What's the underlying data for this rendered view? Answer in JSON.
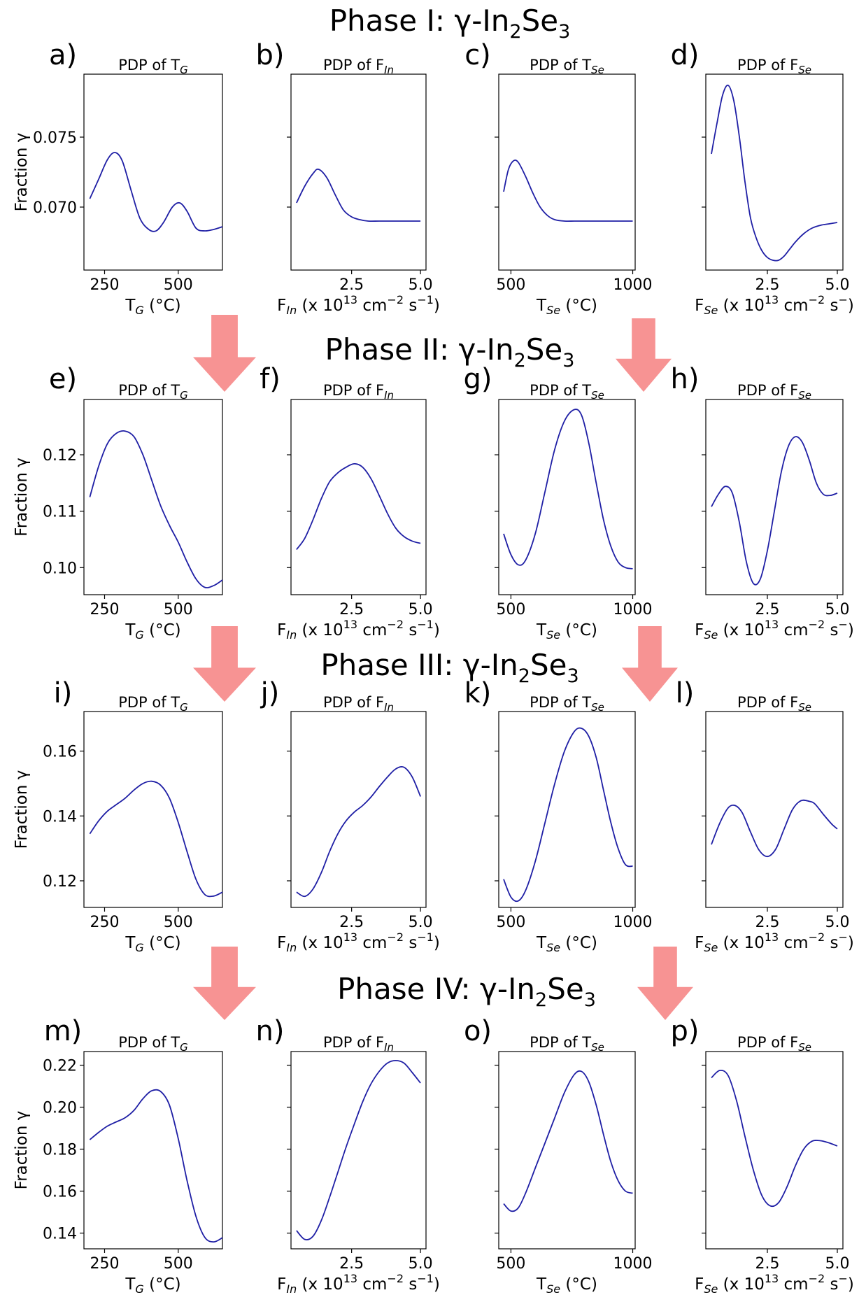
{
  "figure": {
    "phase_titles": [
      {
        "prefix": "Phase I: γ-In",
        "sub1": "2",
        "mid": "Se",
        "sub2": "3"
      },
      {
        "prefix": "Phase II: γ-In",
        "sub1": "2",
        "mid": "Se",
        "sub2": "3"
      },
      {
        "prefix": "Phase III: γ-In",
        "sub1": "2",
        "mid": "Se",
        "sub2": "3"
      },
      {
        "prefix": "Phase IV: γ-In",
        "sub1": "2",
        "mid": "Se",
        "sub2": "3"
      }
    ],
    "arrow_color": "#f79393",
    "line_color": "#1f1fa5",
    "x_labels": [
      {
        "main": "T",
        "sub": "G",
        "unit": " (°C)"
      },
      {
        "main": "F",
        "sub": "In",
        "unit": " (x 10",
        "sup": "13",
        "unit2": " cm",
        "sup2": "−2",
        "unit3": " s",
        "sup3": "−1",
        "unit4": ")"
      },
      {
        "main": "T",
        "sub": "Se",
        "unit": " (°C)"
      },
      {
        "main": "F",
        "sub": "Se",
        "unit": " (x 10",
        "sup": "13",
        "unit2": " cm",
        "sup2": "−2",
        "unit3": " s",
        "sup3": "−",
        "unit4": ")"
      }
    ],
    "panel_titles": [
      {
        "main": "PDP of T",
        "sub": "G"
      },
      {
        "main": "PDP of F",
        "sub": "In"
      },
      {
        "main": "PDP of T",
        "sub": "Se"
      },
      {
        "main": "PDP of F",
        "sub": "Se"
      }
    ],
    "y_label_main": "Fraction γ"
  },
  "chart_data": [
    {
      "type": "line",
      "letter": "a)",
      "xlim": [
        180,
        650
      ],
      "ylim": [
        0.0655,
        0.0795
      ],
      "xticks": [
        250,
        500
      ],
      "xtick_labels": [
        "250",
        "500"
      ],
      "yticks": [
        0.07,
        0.075
      ],
      "ytick_labels": [
        "0.070",
        "0.075"
      ],
      "x": [
        200,
        230,
        260,
        285,
        310,
        340,
        370,
        400,
        425,
        450,
        480,
        505,
        530,
        560,
        590,
        620,
        650
      ],
      "y": [
        0.0706,
        0.072,
        0.0734,
        0.0739,
        0.0733,
        0.0712,
        0.0692,
        0.0684,
        0.0683,
        0.0689,
        0.07,
        0.0703,
        0.0697,
        0.0685,
        0.0683,
        0.0684,
        0.0686
      ]
    },
    {
      "type": "line",
      "letter": "b)",
      "xlim": [
        0.3,
        5.2
      ],
      "ylim": [
        0.0655,
        0.0795
      ],
      "xticks": [
        2.5,
        5.0
      ],
      "xtick_labels": [
        "2.5",
        "5.0"
      ],
      "yticks": [
        0.07,
        0.075
      ],
      "ytick_labels": [
        "",
        ""
      ],
      "x": [
        0.5,
        0.8,
        1.1,
        1.3,
        1.6,
        1.9,
        2.2,
        2.5,
        2.8,
        3.1,
        3.5,
        4.0,
        4.5,
        5.0
      ],
      "y": [
        0.0703,
        0.0715,
        0.0724,
        0.0727,
        0.0721,
        0.0709,
        0.0698,
        0.0693,
        0.0691,
        0.069,
        0.069,
        0.069,
        0.069,
        0.069
      ]
    },
    {
      "type": "line",
      "letter": "c)",
      "xlim": [
        450,
        1010
      ],
      "ylim": [
        0.0655,
        0.0795
      ],
      "xticks": [
        500,
        1000
      ],
      "xtick_labels": [
        "500",
        "1000"
      ],
      "yticks": [
        0.07,
        0.075
      ],
      "ytick_labels": [
        "",
        ""
      ],
      "x": [
        470,
        490,
        510,
        530,
        560,
        590,
        620,
        650,
        680,
        720,
        760,
        800,
        850,
        900,
        950,
        1000
      ],
      "y": [
        0.0711,
        0.0727,
        0.0733,
        0.0732,
        0.0722,
        0.071,
        0.07,
        0.0694,
        0.0691,
        0.069,
        0.069,
        0.069,
        0.069,
        0.069,
        0.069,
        0.069
      ]
    },
    {
      "type": "line",
      "letter": "d)",
      "xlim": [
        0.3,
        5.2
      ],
      "ylim": [
        0.0655,
        0.0795
      ],
      "xticks": [
        2.5,
        5.0
      ],
      "xtick_labels": [
        "2.5",
        "5.0"
      ],
      "yticks": [
        0.07,
        0.075
      ],
      "ytick_labels": [
        "",
        ""
      ],
      "x": [
        0.5,
        0.7,
        0.9,
        1.1,
        1.3,
        1.5,
        1.7,
        1.9,
        2.1,
        2.3,
        2.5,
        2.7,
        2.9,
        3.1,
        3.3,
        3.5,
        3.8,
        4.1,
        4.4,
        4.7,
        5.0
      ],
      "y": [
        0.0738,
        0.076,
        0.078,
        0.0787,
        0.0776,
        0.075,
        0.0718,
        0.0692,
        0.0678,
        0.0669,
        0.0664,
        0.0662,
        0.0662,
        0.0665,
        0.067,
        0.0675,
        0.0681,
        0.0685,
        0.0687,
        0.0688,
        0.0689
      ]
    },
    {
      "type": "line",
      "letter": "e)",
      "xlim": [
        180,
        650
      ],
      "ylim": [
        0.0952,
        0.1298
      ],
      "xticks": [
        250,
        500
      ],
      "xtick_labels": [
        "250",
        "500"
      ],
      "yticks": [
        0.1,
        0.11,
        0.12
      ],
      "ytick_labels": [
        "0.10",
        "0.11",
        "0.12"
      ],
      "x": [
        200,
        230,
        260,
        290,
        320,
        350,
        380,
        410,
        440,
        470,
        500,
        530,
        560,
        590,
        620,
        650
      ],
      "y": [
        0.1125,
        0.118,
        0.122,
        0.1238,
        0.1242,
        0.1232,
        0.12,
        0.1155,
        0.111,
        0.1075,
        0.1045,
        0.101,
        0.098,
        0.0965,
        0.0968,
        0.0978
      ]
    },
    {
      "type": "line",
      "letter": "f)",
      "xlim": [
        0.3,
        5.2
      ],
      "ylim": [
        0.0952,
        0.1298
      ],
      "xticks": [
        2.5,
        5.0
      ],
      "xtick_labels": [
        "2.5",
        "5.0"
      ],
      "yticks": [
        0.1,
        0.11,
        0.12
      ],
      "ytick_labels": [
        "",
        "",
        ""
      ],
      "x": [
        0.5,
        0.8,
        1.1,
        1.4,
        1.7,
        2.0,
        2.3,
        2.6,
        2.9,
        3.2,
        3.5,
        3.8,
        4.1,
        4.4,
        4.7,
        5.0
      ],
      "y": [
        0.1032,
        0.1052,
        0.1085,
        0.1122,
        0.1152,
        0.1168,
        0.1178,
        0.1184,
        0.1178,
        0.1158,
        0.1128,
        0.1096,
        0.107,
        0.1055,
        0.1047,
        0.1043
      ]
    },
    {
      "type": "line",
      "letter": "g)",
      "xlim": [
        450,
        1010
      ],
      "ylim": [
        0.0952,
        0.1298
      ],
      "xticks": [
        500,
        1000
      ],
      "xtick_labels": [
        "500",
        "1000"
      ],
      "yticks": [
        0.1,
        0.11,
        0.12
      ],
      "ytick_labels": [
        "",
        "",
        ""
      ],
      "x": [
        470,
        500,
        530,
        560,
        600,
        640,
        680,
        720,
        760,
        790,
        820,
        850,
        880,
        910,
        940,
        970,
        1000
      ],
      "y": [
        0.106,
        0.1023,
        0.1005,
        0.1013,
        0.106,
        0.1135,
        0.121,
        0.126,
        0.128,
        0.127,
        0.122,
        0.115,
        0.1085,
        0.1038,
        0.101,
        0.1,
        0.0998
      ]
    },
    {
      "type": "line",
      "letter": "h)",
      "xlim": [
        0.3,
        5.2
      ],
      "ylim": [
        0.0952,
        0.1298
      ],
      "xticks": [
        2.5,
        5.0
      ],
      "xtick_labels": [
        "2.5",
        "5.0"
      ],
      "yticks": [
        0.1,
        0.11,
        0.12
      ],
      "ytick_labels": [
        "",
        "",
        ""
      ],
      "x": [
        0.5,
        0.75,
        1.0,
        1.25,
        1.5,
        1.75,
        2.0,
        2.25,
        2.5,
        2.75,
        3.0,
        3.25,
        3.5,
        3.75,
        4.0,
        4.25,
        4.5,
        4.75,
        5.0
      ],
      "y": [
        0.1108,
        0.113,
        0.1144,
        0.1132,
        0.108,
        0.101,
        0.0972,
        0.098,
        0.103,
        0.11,
        0.117,
        0.1215,
        0.1232,
        0.1222,
        0.119,
        0.115,
        0.113,
        0.1128,
        0.1132
      ]
    },
    {
      "type": "line",
      "letter": "i)",
      "xlim": [
        180,
        650
      ],
      "ylim": [
        0.1118,
        0.1722
      ],
      "xticks": [
        250,
        500
      ],
      "xtick_labels": [
        "250",
        "500"
      ],
      "yticks": [
        0.12,
        0.14,
        0.16
      ],
      "ytick_labels": [
        "0.12",
        "0.14",
        "0.16"
      ],
      "x": [
        200,
        230,
        260,
        290,
        320,
        350,
        380,
        410,
        440,
        470,
        500,
        530,
        560,
        590,
        620,
        650
      ],
      "y": [
        0.1345,
        0.1385,
        0.1415,
        0.1435,
        0.1455,
        0.148,
        0.15,
        0.1507,
        0.1495,
        0.1455,
        0.138,
        0.129,
        0.1205,
        0.1158,
        0.1153,
        0.1165
      ]
    },
    {
      "type": "line",
      "letter": "j)",
      "xlim": [
        0.3,
        5.2
      ],
      "ylim": [
        0.1118,
        0.1722
      ],
      "xticks": [
        2.5,
        5.0
      ],
      "xtick_labels": [
        "2.5",
        "5.0"
      ],
      "yticks": [
        0.12,
        0.14,
        0.16
      ],
      "ytick_labels": [
        "",
        "",
        ""
      ],
      "x": [
        0.5,
        0.8,
        1.1,
        1.4,
        1.7,
        2.0,
        2.3,
        2.6,
        2.9,
        3.2,
        3.5,
        3.8,
        4.1,
        4.4,
        4.7,
        5.0
      ],
      "y": [
        0.1165,
        0.1152,
        0.1175,
        0.1225,
        0.129,
        0.1345,
        0.1385,
        0.1412,
        0.1432,
        0.1458,
        0.149,
        0.152,
        0.1545,
        0.155,
        0.152,
        0.146
      ]
    },
    {
      "type": "line",
      "letter": "k)",
      "xlim": [
        450,
        1010
      ],
      "ylim": [
        0.1118,
        0.1722
      ],
      "xticks": [
        500,
        1000
      ],
      "xtick_labels": [
        "500",
        "1000"
      ],
      "yticks": [
        0.12,
        0.14,
        0.16
      ],
      "ytick_labels": [
        "",
        "",
        ""
      ],
      "x": [
        470,
        500,
        530,
        560,
        600,
        640,
        680,
        720,
        760,
        790,
        820,
        850,
        880,
        910,
        940,
        970,
        1000
      ],
      "y": [
        0.1205,
        0.115,
        0.1138,
        0.117,
        0.126,
        0.138,
        0.15,
        0.16,
        0.166,
        0.167,
        0.1645,
        0.158,
        0.148,
        0.138,
        0.13,
        0.125,
        0.1245
      ]
    },
    {
      "type": "line",
      "letter": "l)",
      "xlim": [
        0.3,
        5.2
      ],
      "ylim": [
        0.1118,
        0.1722
      ],
      "xticks": [
        2.5,
        5.0
      ],
      "xtick_labels": [
        "2.5",
        "5.0"
      ],
      "yticks": [
        0.12,
        0.14,
        0.16
      ],
      "ytick_labels": [
        "",
        "",
        ""
      ],
      "x": [
        0.5,
        0.8,
        1.1,
        1.35,
        1.6,
        1.9,
        2.2,
        2.5,
        2.8,
        3.1,
        3.4,
        3.7,
        4.0,
        4.2,
        4.5,
        4.8,
        5.0
      ],
      "y": [
        0.1312,
        0.1378,
        0.1425,
        0.1432,
        0.141,
        0.135,
        0.1295,
        0.1275,
        0.1298,
        0.136,
        0.142,
        0.1447,
        0.1445,
        0.1437,
        0.1405,
        0.1375,
        0.136
      ]
    },
    {
      "type": "line",
      "letter": "m)",
      "xlim": [
        180,
        650
      ],
      "ylim": [
        0.1325,
        0.2265
      ],
      "xticks": [
        250,
        500
      ],
      "xtick_labels": [
        "250",
        "500"
      ],
      "yticks": [
        0.14,
        0.16,
        0.18,
        0.2,
        0.22
      ],
      "ytick_labels": [
        "0.14",
        "0.16",
        "0.18",
        "0.20",
        "0.22"
      ],
      "x": [
        200,
        230,
        260,
        290,
        320,
        350,
        380,
        410,
        440,
        470,
        500,
        530,
        560,
        590,
        620,
        650
      ],
      "y": [
        0.1845,
        0.188,
        0.191,
        0.193,
        0.195,
        0.1985,
        0.204,
        0.2078,
        0.2075,
        0.201,
        0.185,
        0.165,
        0.148,
        0.138,
        0.1358,
        0.1378
      ]
    },
    {
      "type": "line",
      "letter": "n)",
      "xlim": [
        0.3,
        5.2
      ],
      "ylim": [
        0.1325,
        0.2265
      ],
      "xticks": [
        2.5,
        5.0
      ],
      "xtick_labels": [
        "2.5",
        "5.0"
      ],
      "yticks": [
        0.14,
        0.16,
        0.18,
        0.2,
        0.22
      ],
      "ytick_labels": [
        "",
        "",
        "",
        "",
        ""
      ],
      "x": [
        0.5,
        0.8,
        1.1,
        1.4,
        1.7,
        2.0,
        2.3,
        2.6,
        2.9,
        3.2,
        3.5,
        3.8,
        4.1,
        4.4,
        4.7,
        5.0
      ],
      "y": [
        0.1412,
        0.137,
        0.1385,
        0.146,
        0.157,
        0.169,
        0.181,
        0.192,
        0.2025,
        0.211,
        0.217,
        0.221,
        0.2222,
        0.221,
        0.2165,
        0.2115
      ]
    },
    {
      "type": "line",
      "letter": "o)",
      "xlim": [
        450,
        1010
      ],
      "ylim": [
        0.1325,
        0.2265
      ],
      "xticks": [
        500,
        1000
      ],
      "xtick_labels": [
        "500",
        "1000"
      ],
      "yticks": [
        0.14,
        0.16,
        0.18,
        0.2,
        0.22
      ],
      "ytick_labels": [
        "",
        "",
        "",
        "",
        ""
      ],
      "x": [
        470,
        500,
        530,
        560,
        600,
        640,
        680,
        720,
        760,
        790,
        820,
        850,
        880,
        910,
        940,
        970,
        1000
      ],
      "y": [
        0.154,
        0.1505,
        0.152,
        0.159,
        0.171,
        0.183,
        0.195,
        0.207,
        0.2155,
        0.217,
        0.212,
        0.201,
        0.187,
        0.174,
        0.165,
        0.16,
        0.159
      ]
    },
    {
      "type": "line",
      "letter": "p)",
      "xlim": [
        0.3,
        5.2
      ],
      "ylim": [
        0.1325,
        0.2265
      ],
      "xticks": [
        2.5,
        5.0
      ],
      "xtick_labels": [
        "2.5",
        "5.0"
      ],
      "yticks": [
        0.14,
        0.16,
        0.18,
        0.2,
        0.22
      ],
      "ytick_labels": [
        "",
        "",
        "",
        "",
        ""
      ],
      "x": [
        0.5,
        0.8,
        1.1,
        1.4,
        1.7,
        2.0,
        2.3,
        2.6,
        2.9,
        3.2,
        3.5,
        3.8,
        4.1,
        4.4,
        4.7,
        5.0
      ],
      "y": [
        0.214,
        0.2175,
        0.215,
        0.203,
        0.186,
        0.17,
        0.158,
        0.153,
        0.1545,
        0.162,
        0.172,
        0.18,
        0.1838,
        0.184,
        0.183,
        0.1815
      ]
    }
  ]
}
